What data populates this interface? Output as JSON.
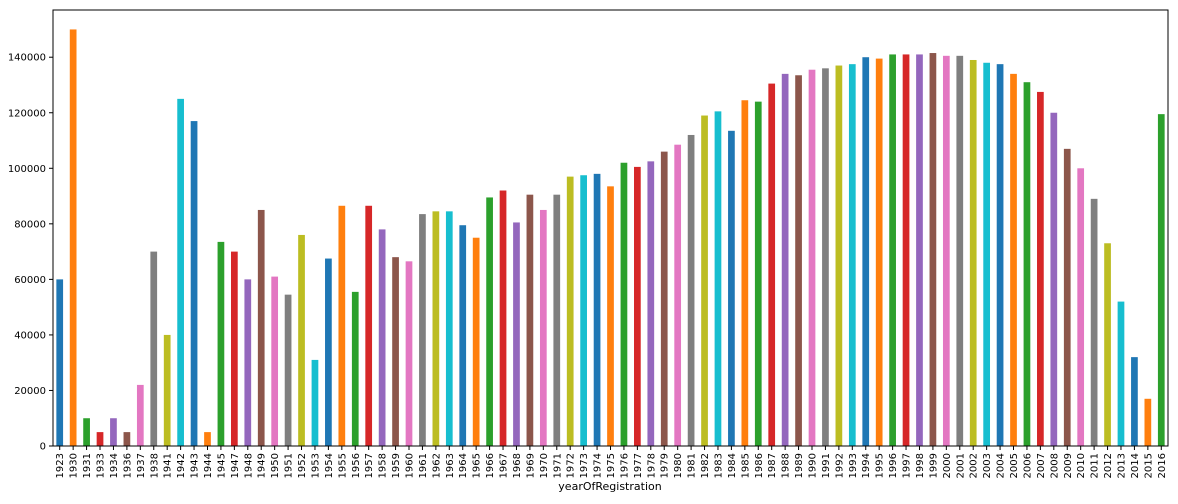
{
  "chart_data": {
    "type": "bar",
    "title": "",
    "xlabel": "yearOfRegistration",
    "ylabel": "",
    "ylim": [
      0,
      157000
    ],
    "yticks": [
      0,
      20000,
      40000,
      60000,
      80000,
      100000,
      120000,
      140000
    ],
    "grid": false,
    "legend": "none",
    "categories": [
      "1923",
      "1930",
      "1931",
      "1933",
      "1934",
      "1936",
      "1937",
      "1938",
      "1941",
      "1942",
      "1943",
      "1944",
      "1945",
      "1947",
      "1948",
      "1949",
      "1950",
      "1951",
      "1952",
      "1953",
      "1954",
      "1955",
      "1956",
      "1957",
      "1958",
      "1959",
      "1960",
      "1961",
      "1962",
      "1963",
      "1964",
      "1965",
      "1966",
      "1967",
      "1968",
      "1969",
      "1970",
      "1971",
      "1972",
      "1973",
      "1974",
      "1975",
      "1976",
      "1977",
      "1978",
      "1979",
      "1980",
      "1981",
      "1982",
      "1983",
      "1984",
      "1985",
      "1986",
      "1987",
      "1988",
      "1989",
      "1990",
      "1991",
      "1992",
      "1993",
      "1994",
      "1995",
      "1996",
      "1997",
      "1998",
      "1999",
      "2000",
      "2001",
      "2002",
      "2003",
      "2004",
      "2005",
      "2006",
      "2007",
      "2008",
      "2009",
      "2010",
      "2011",
      "2012",
      "2013",
      "2014",
      "2015",
      "2016"
    ],
    "values": [
      60000,
      150000,
      10000,
      5000,
      10000,
      5000,
      22000,
      70000,
      40000,
      125000,
      117000,
      5000,
      73500,
      70000,
      60000,
      85000,
      61000,
      54500,
      76000,
      31000,
      67500,
      86500,
      55500,
      86500,
      78000,
      68000,
      66500,
      83500,
      84500,
      84500,
      79500,
      75000,
      89500,
      92000,
      80500,
      90500,
      85000,
      90500,
      97000,
      97500,
      98000,
      93500,
      102000,
      100500,
      102500,
      106000,
      108500,
      112000,
      119000,
      120500,
      113500,
      124500,
      124000,
      130500,
      134000,
      133500,
      135500,
      136000,
      137000,
      137500,
      140000,
      139500,
      141000,
      141000,
      141000,
      141500,
      140500,
      140500,
      139000,
      138000,
      137500,
      134000,
      131000,
      127500,
      120000,
      107000,
      100000,
      89000,
      73000,
      52000,
      32000,
      17000,
      119500
    ]
  },
  "palette": [
    "#1f77b4",
    "#ff7f0e",
    "#2ca02c",
    "#d62728",
    "#9467bd",
    "#8c564b",
    "#e377c2",
    "#7f7f7f",
    "#bcbd22",
    "#17becf"
  ]
}
